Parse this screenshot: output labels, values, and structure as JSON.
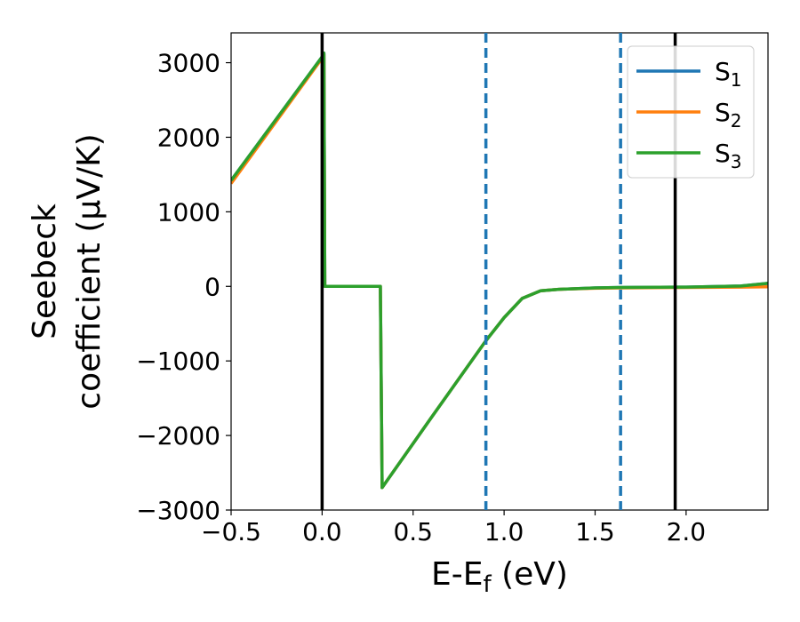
{
  "chart_data": {
    "type": "line",
    "title": "",
    "xlabel": "E-E",
    "xlabel_sub": "f",
    "xlabel_unit": " (eV)",
    "ylabel_line1": "Seebeck",
    "ylabel_line2": "coefficient  (μV/K)",
    "xlim": [
      -0.5,
      2.45
    ],
    "ylim": [
      -3000,
      3400
    ],
    "xticks": [
      -0.5,
      0.0,
      0.5,
      1.0,
      1.5,
      2.0
    ],
    "xtick_labels": [
      "−0.5",
      "0.0",
      "0.5",
      "1.0",
      "1.5",
      "2.0"
    ],
    "yticks": [
      -3000,
      -2000,
      -1000,
      0,
      1000,
      2000,
      3000
    ],
    "ytick_labels": [
      "−3000",
      "−2000",
      "−1000",
      "0",
      "1000",
      "2000",
      "3000"
    ],
    "vlines_solid": [
      0.0,
      1.94
    ],
    "vlines_dashed": [
      0.9,
      1.64
    ],
    "vline_solid_color": "#000000",
    "vline_dashed_color": "#1f77b4",
    "legend_position": "top-right",
    "series": [
      {
        "name": "S",
        "name_sub": "1",
        "color": "#1f77b4",
        "x": [
          -0.5,
          0.0,
          0.01,
          0.015,
          0.03,
          0.32,
          0.33,
          0.6,
          0.9,
          1.0,
          1.1,
          1.2,
          1.3,
          1.5,
          1.64,
          2.0,
          2.3,
          2.45
        ],
        "y": [
          1420,
          3080,
          3130,
          0,
          0,
          0,
          -2700,
          -1760,
          -730,
          -420,
          -160,
          -60,
          -40,
          -20,
          -15,
          -10,
          5,
          40
        ]
      },
      {
        "name": "S",
        "name_sub": "2",
        "color": "#ff7f0e",
        "x": [
          -0.5,
          0.0,
          0.01,
          0.015,
          0.03,
          0.32,
          0.33,
          0.6,
          0.9,
          1.0,
          1.1,
          1.2,
          1.3,
          1.5,
          1.64,
          2.0,
          2.3,
          2.45
        ],
        "y": [
          1380,
          3060,
          3110,
          0,
          0,
          0,
          -2700,
          -1760,
          -730,
          -420,
          -160,
          -60,
          -40,
          -25,
          -20,
          -15,
          -10,
          -5
        ]
      },
      {
        "name": "S",
        "name_sub": "3",
        "color": "#2ca02c",
        "x": [
          -0.5,
          0.0,
          0.01,
          0.015,
          0.03,
          0.32,
          0.33,
          0.6,
          0.9,
          1.0,
          1.1,
          1.2,
          1.3,
          1.5,
          1.64,
          2.0,
          2.3,
          2.45
        ],
        "y": [
          1420,
          3080,
          3130,
          0,
          0,
          0,
          -2700,
          -1760,
          -730,
          -420,
          -160,
          -60,
          -40,
          -20,
          -15,
          -10,
          5,
          40
        ]
      }
    ]
  }
}
